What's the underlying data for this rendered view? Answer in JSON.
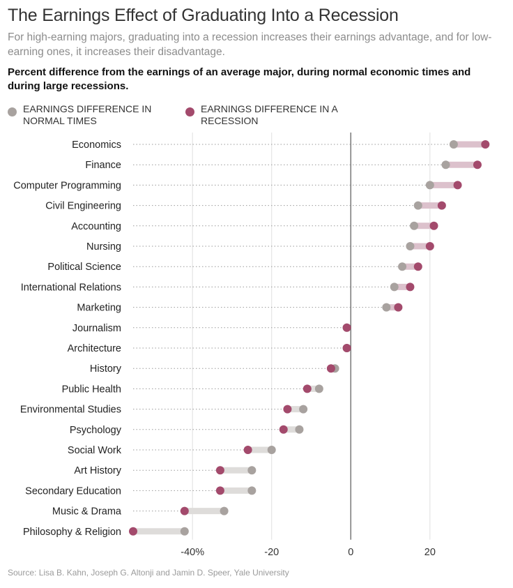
{
  "header": {
    "title": "The Earnings Effect of Graduating Into a Recession",
    "subtitle": "For high-earning majors, graduating into a recession increases their earnings advantage, and for low-earning ones, it increases their disadvantage.",
    "chart_heading": "Percent difference from the earnings of an average major, during normal economic times and during large recessions."
  },
  "legend": {
    "normal_label": "Earnings difference in normal times",
    "recession_label": "Earnings difference in a recession"
  },
  "colors": {
    "normal": "#a8a29f",
    "recession": "#a34a6c",
    "bar_positive": "#dcc1cc",
    "bar_negative": "#dedcda",
    "gridline": "#e0e0e0",
    "zero_line": "#777777"
  },
  "footer": {
    "source": "Source: Lisa B. Kahn, Joseph G. Altonji and Jamin D. Speer, Yale University"
  },
  "chart_data": {
    "type": "dot-range",
    "title": "Percent difference from the earnings of an average major, during normal economic times and during large recessions.",
    "xlim": [
      -55,
      35
    ],
    "x_ticks": [
      -40,
      -20,
      0,
      20
    ],
    "x_tick_labels": [
      "-40%",
      "-20",
      "0",
      "20"
    ],
    "grid": true,
    "legend_position": "top-left",
    "categories": [
      "Economics",
      "Finance",
      "Computer Programming",
      "Civil Engineering",
      "Accounting",
      "Nursing",
      "Political Science",
      "International Relations",
      "Marketing",
      "Journalism",
      "Architecture",
      "History",
      "Public Health",
      "Environmental Studies",
      "Psychology",
      "Social Work",
      "Art History",
      "Secondary Education",
      "Music & Drama",
      "Philosophy & Religion"
    ],
    "series": [
      {
        "name": "Earnings difference in normal times",
        "values": [
          26,
          24,
          20,
          17,
          16,
          15,
          13,
          11,
          9,
          -1,
          -1,
          -4,
          -8,
          -12,
          -13,
          -20,
          -25,
          -25,
          -32,
          -42
        ]
      },
      {
        "name": "Earnings difference in a recession",
        "values": [
          34,
          32,
          27,
          23,
          21,
          20,
          17,
          15,
          12,
          -1,
          -1,
          -5,
          -11,
          -16,
          -17,
          -26,
          -33,
          -33,
          -42,
          -55
        ]
      }
    ]
  }
}
